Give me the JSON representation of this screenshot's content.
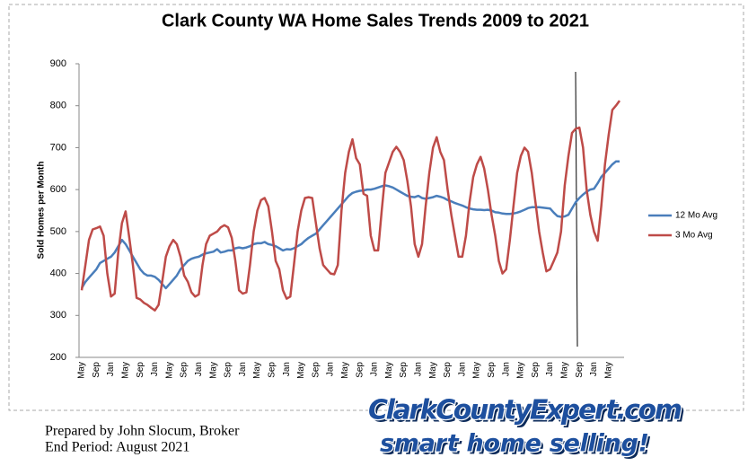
{
  "chart_data": {
    "type": "line",
    "title": "Clark County WA Home Sales Trends 2009 to 2021",
    "y_label": "Sold Homes per Month",
    "ylim": [
      200,
      900
    ],
    "yticks": [
      200,
      300,
      400,
      500,
      600,
      700,
      800,
      900
    ],
    "grid": false,
    "legend": "right",
    "categories": [
      "May",
      null,
      null,
      null,
      "Sep",
      null,
      null,
      null,
      "Jan",
      null,
      null,
      null,
      "May",
      null,
      null,
      null,
      "Sep",
      null,
      null,
      null,
      "Jan",
      null,
      null,
      null,
      "May",
      null,
      null,
      null,
      "Sep",
      null,
      null,
      null,
      "Jan",
      null,
      null,
      null,
      "May",
      null,
      null,
      null,
      "Sep",
      null,
      null,
      null,
      "Jan",
      null,
      null,
      null,
      "May",
      null,
      null,
      null,
      "Sep",
      null,
      null,
      null,
      "Jan",
      null,
      null,
      null,
      "May",
      null,
      null,
      null,
      "Sep",
      null,
      null,
      null,
      "Jan",
      null,
      null,
      null,
      "May",
      null,
      null,
      null,
      "Sep",
      null,
      null,
      null,
      "Jan",
      null,
      null,
      null,
      "May",
      null,
      null,
      null,
      "Sep",
      null,
      null,
      null,
      "Jan",
      null,
      null,
      null,
      "May",
      null,
      null,
      null,
      "Sep",
      null,
      null,
      null,
      "Jan",
      null,
      null,
      null,
      "May",
      null,
      null,
      null,
      "Sep",
      null,
      null,
      null,
      "Jan",
      null,
      null,
      null,
      "May",
      null,
      null,
      null,
      "Sep",
      null,
      null,
      null,
      "Jan",
      null,
      null,
      null,
      "May",
      null,
      null,
      null,
      "Sep",
      null,
      null,
      null,
      "Jan",
      null,
      null,
      null,
      "May",
      null,
      null,
      null
    ],
    "series": [
      {
        "name": "12 Mo Avg",
        "color": "#4a7ebb",
        "values": [
          365,
          380,
          390,
          400,
          410,
          425,
          430,
          435,
          440,
          450,
          465,
          480,
          470,
          455,
          440,
          425,
          410,
          400,
          395,
          395,
          392,
          385,
          375,
          365,
          375,
          385,
          395,
          410,
          420,
          430,
          435,
          438,
          440,
          445,
          448,
          450,
          452,
          458,
          450,
          452,
          455,
          455,
          460,
          462,
          460,
          462,
          465,
          470,
          472,
          472,
          475,
          470,
          468,
          465,
          460,
          455,
          458,
          457,
          460,
          465,
          470,
          478,
          485,
          490,
          495,
          505,
          515,
          525,
          535,
          545,
          555,
          565,
          575,
          585,
          592,
          595,
          597,
          598,
          600,
          600,
          602,
          605,
          608,
          610,
          608,
          605,
          600,
          595,
          590,
          585,
          583,
          582,
          585,
          580,
          578,
          580,
          582,
          585,
          583,
          580,
          575,
          572,
          568,
          565,
          562,
          558,
          555,
          553,
          552,
          552,
          551,
          552,
          550,
          546,
          545,
          543,
          542,
          542,
          543,
          545,
          548,
          552,
          556,
          558,
          558,
          558,
          557,
          556,
          555,
          545,
          537,
          535,
          536,
          540,
          555,
          570,
          580,
          588,
          595,
          600,
          602,
          615,
          630,
          640,
          650,
          660,
          667,
          667
        ]
      },
      {
        "name": "3 Mo Avg",
        "color": "#be4b48",
        "values": [
          360,
          420,
          480,
          505,
          508,
          512,
          490,
          400,
          345,
          352,
          450,
          520,
          548,
          485,
          420,
          342,
          338,
          330,
          325,
          318,
          312,
          325,
          380,
          440,
          465,
          480,
          470,
          440,
          395,
          380,
          355,
          345,
          350,
          420,
          470,
          490,
          495,
          500,
          510,
          515,
          510,
          485,
          430,
          360,
          352,
          355,
          420,
          500,
          550,
          575,
          580,
          560,
          500,
          430,
          410,
          360,
          340,
          345,
          420,
          500,
          550,
          580,
          582,
          580,
          520,
          460,
          420,
          410,
          400,
          398,
          420,
          550,
          640,
          690,
          720,
          675,
          660,
          590,
          585,
          490,
          455,
          455,
          550,
          640,
          665,
          690,
          702,
          690,
          670,
          620,
          560,
          470,
          440,
          470,
          560,
          640,
          700,
          725,
          690,
          670,
          600,
          540,
          490,
          440,
          440,
          490,
          570,
          630,
          660,
          678,
          650,
          600,
          540,
          490,
          430,
          400,
          410,
          480,
          560,
          640,
          680,
          700,
          690,
          640,
          570,
          500,
          450,
          405,
          410,
          430,
          450,
          500,
          610,
          680,
          735,
          745,
          748,
          700,
          600,
          540,
          500,
          478,
          560,
          660,
          730,
          790,
          800,
          812
        ]
      }
    ],
    "notes": [
      "Prepared by John Slocum, Broker",
      "End Period: August 2021"
    ],
    "logo": [
      "ClarkCountyExpert.com",
      "smart home selling!"
    ]
  }
}
